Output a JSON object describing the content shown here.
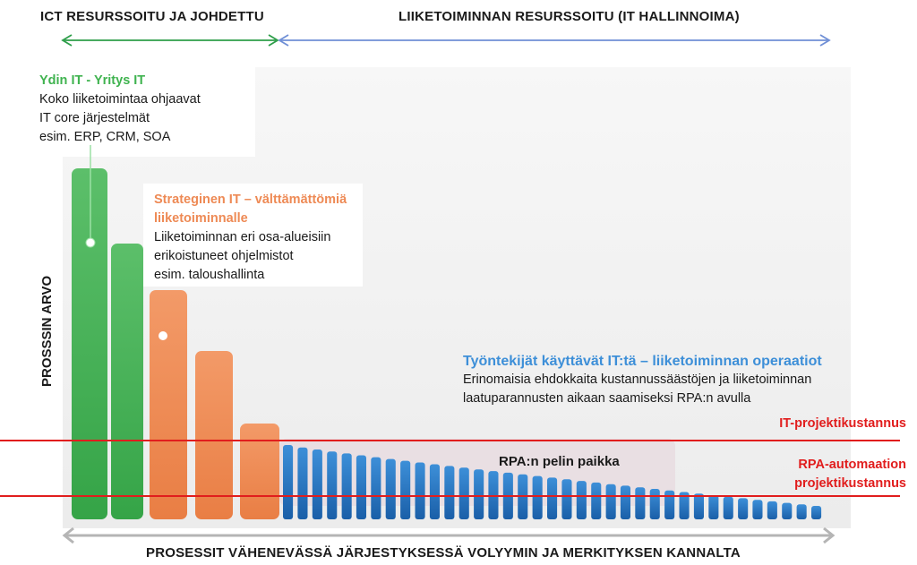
{
  "header": {
    "left": "ICT RESURSSOITU JA JOHDETTU",
    "right": "LIIKETOIMINNAN RESURSSOITU (IT HALLINNOIMA)"
  },
  "core_it": {
    "title": "Ydin IT - Yritys IT",
    "lines": [
      "Koko liiketoimintaa ohjaavat",
      "IT core järjestelmät",
      "esim. ERP, CRM, SOA"
    ]
  },
  "strategic_it": {
    "title_lines": [
      "Strateginen IT – välttämättömiä",
      "liiketoiminnalle"
    ],
    "lines": [
      "Liiketoiminnan eri osa-alueisiin",
      "erikoistuneet ohjelmistot",
      "esim. taloushallinta"
    ]
  },
  "operations": {
    "title": "Työntekijät käyttävät IT:tä – liiketoiminnan operaatiot",
    "lines": [
      "Erinomaisia ehdokkaita kustannussäästöjen ja liiketoiminnan",
      "laatuparannusten aikaan saamiseksi RPA:n avulla"
    ]
  },
  "rpa_zone": "RPA:n pelin paikka",
  "it_cost": "IT-projektikustannus",
  "rpa_cost": [
    "RPA-automaation",
    "projektikustannus"
  ],
  "y_axis": "PROSSSIN ARVO",
  "x_axis": "PROSESSIT VÄHENEVÄSSÄ JÄRJESTYKSESSÄ VOLYYMIN JA MERKITYKSEN KANNALTA",
  "colors": {
    "green": "#5cbf6a",
    "orange": "#ef915f",
    "blue": "#2f7fd0",
    "red": "#e11d1d"
  }
}
